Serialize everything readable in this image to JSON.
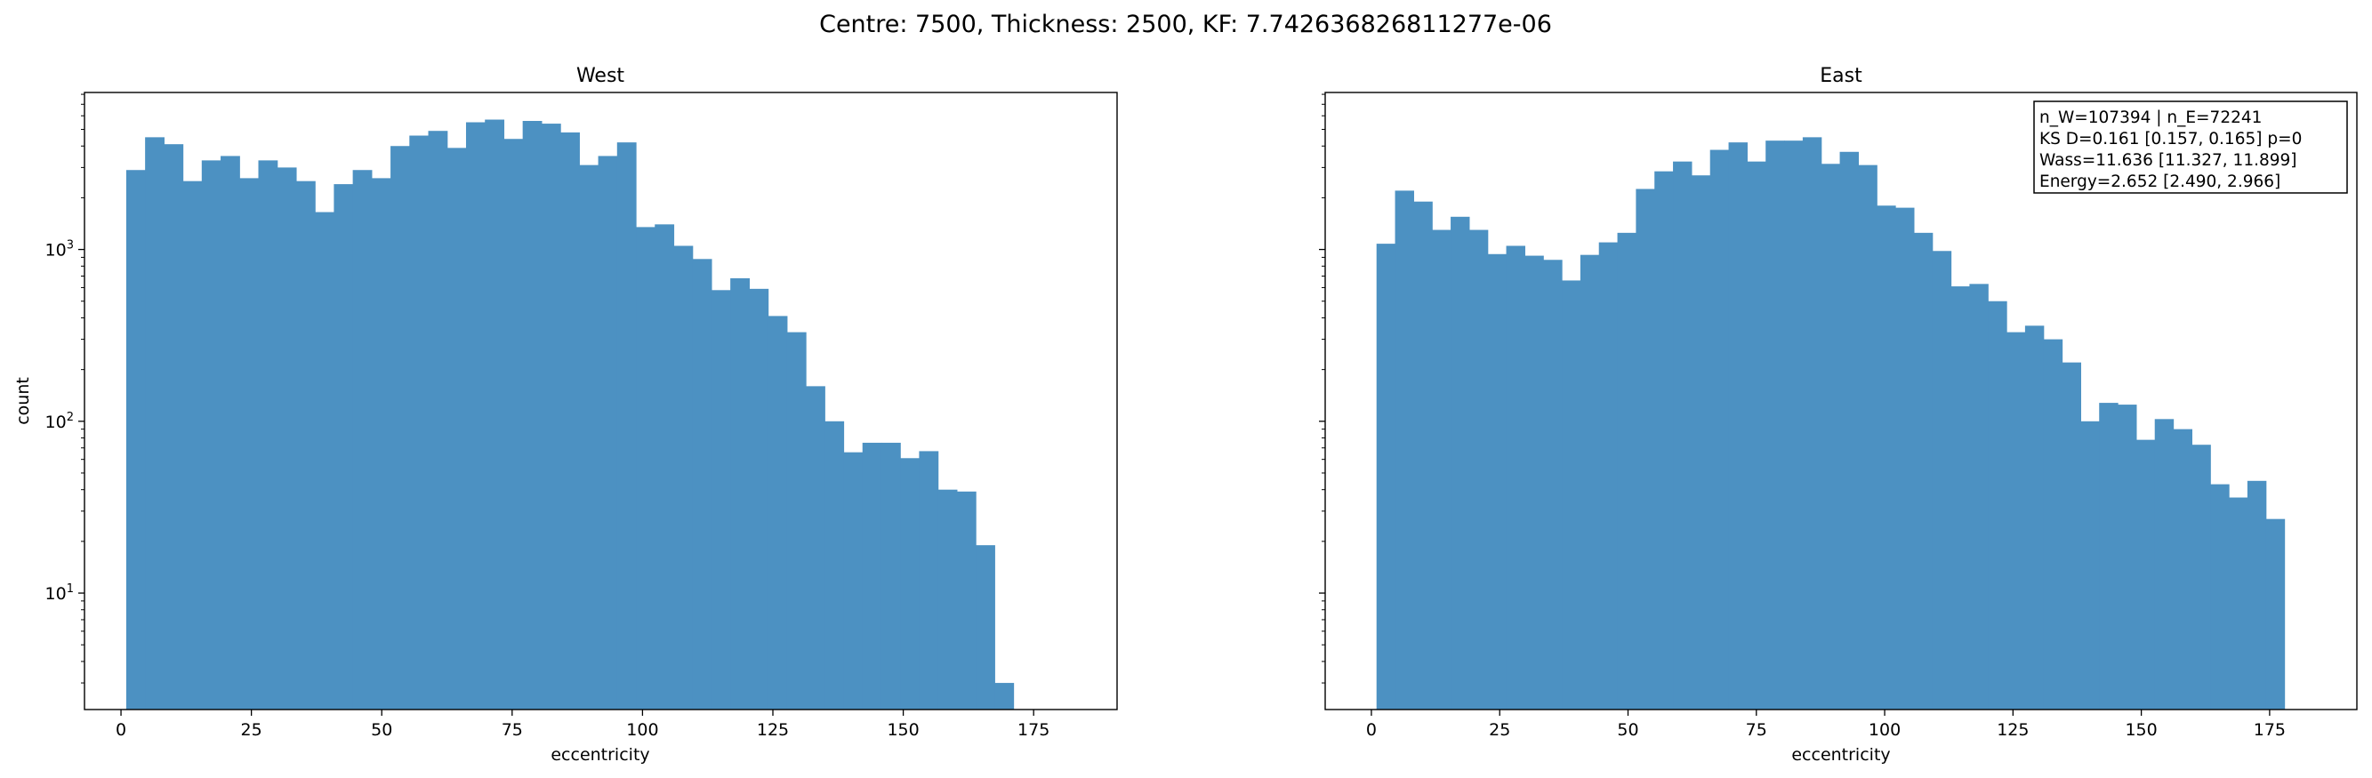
{
  "figure": {
    "suptitle": "Centre: 7500, Thickness: 2500, KF: 7.742636826811277e-06"
  },
  "colors": {
    "bar": "#4c91c2",
    "axes": "#000000",
    "background": "#ffffff"
  },
  "chart_data": [
    {
      "type": "bar",
      "title": "West",
      "xlabel": "eccentricity",
      "ylabel": "count",
      "yscale": "log",
      "xlim": [
        -7,
        191
      ],
      "ylim": [
        2.1,
        8200
      ],
      "xticks": [
        0,
        25,
        50,
        75,
        100,
        125,
        150,
        175
      ],
      "yticks": [
        {
          "value": 10,
          "label": "10",
          "exp": "1"
        },
        {
          "value": 100,
          "label": "10",
          "exp": "2"
        },
        {
          "value": 1000,
          "label": "10",
          "exp": "3"
        }
      ],
      "bin_start": 1.0,
      "bin_width": 3.62,
      "values": [
        2900,
        4500,
        4100,
        2500,
        3300,
        3500,
        2600,
        3300,
        3000,
        2500,
        1650,
        2400,
        2900,
        2600,
        4000,
        4600,
        4900,
        3900,
        5500,
        5700,
        4400,
        5600,
        5400,
        4800,
        3100,
        3500,
        4200,
        1350,
        1400,
        1050,
        880,
        580,
        680,
        590,
        410,
        330,
        160,
        100,
        66,
        75,
        75,
        61,
        67,
        40,
        39,
        19,
        3
      ]
    },
    {
      "type": "bar",
      "title": "East",
      "xlabel": "eccentricity",
      "ylabel": "",
      "yscale": "log",
      "xlim": [
        -9,
        192
      ],
      "ylim": [
        2.1,
        8200
      ],
      "xticks": [
        0,
        25,
        50,
        75,
        100,
        125,
        150,
        175
      ],
      "bin_start": 1.0,
      "bin_width": 3.61,
      "values": [
        1080,
        2200,
        1900,
        1300,
        1550,
        1300,
        940,
        1050,
        920,
        870,
        660,
        930,
        1100,
        1250,
        2250,
        2850,
        3250,
        2700,
        3800,
        4200,
        3250,
        4300,
        4300,
        4500,
        3150,
        3700,
        3100,
        1800,
        1750,
        1250,
        980,
        610,
        630,
        500,
        330,
        360,
        300,
        220,
        100,
        128,
        125,
        78,
        103,
        90,
        73,
        43,
        36,
        45,
        27
      ]
    }
  ],
  "stats_box": [
    "n_W=107394 | n_E=72241",
    "KS D=0.161 [0.157, 0.165]  p=0",
    "Wass=11.636 [11.327, 11.899]",
    "Energy=2.652 [2.490, 2.966]"
  ]
}
